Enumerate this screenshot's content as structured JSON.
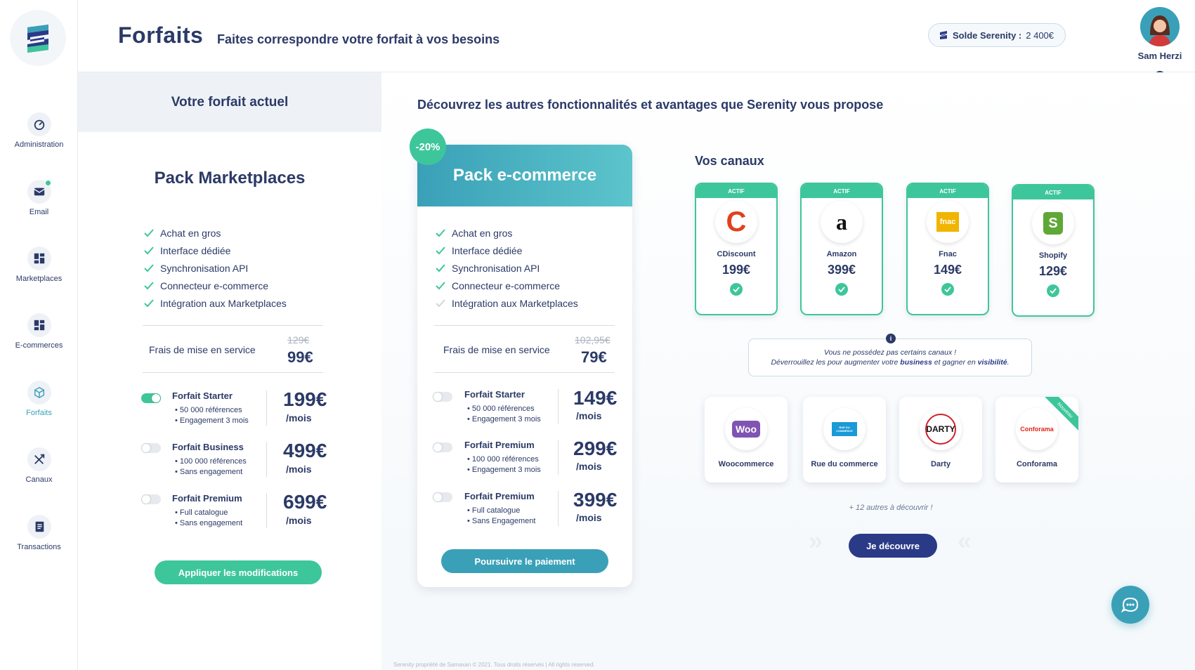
{
  "header": {
    "title": "Forfaits",
    "subtitle": "Faites correspondre votre forfait à vos besoins",
    "balance_label": "Solde Serenity :",
    "balance_value": "2 400€",
    "user_name": "Sam Herzi"
  },
  "sidebar": {
    "items": [
      {
        "label": "Administration",
        "icon": "gauge-icon"
      },
      {
        "label": "Email",
        "icon": "mail-icon"
      },
      {
        "label": "Marketplaces",
        "icon": "dashboard-icon"
      },
      {
        "label": "E-commerces",
        "icon": "dashboard-icon"
      },
      {
        "label": "Forfaits",
        "icon": "cube-icon",
        "active": true
      },
      {
        "label": "Canaux",
        "icon": "shuffle-icon"
      },
      {
        "label": "Transactions",
        "icon": "receipt-icon"
      }
    ]
  },
  "current": {
    "heading": "Votre forfait actuel",
    "pack_name": "Pack Marketplaces",
    "features": [
      "Achat en gros",
      "Interface dédiée",
      "Synchronisation API",
      "Connecteur e-commerce",
      "Intégration aux Marketplaces"
    ],
    "fee_label": "Frais de mise en service",
    "fee_old": "129€",
    "fee_new": "99€",
    "plans": [
      {
        "name": "Forfait Starter",
        "d1": "50 000 références",
        "d2": "Engagement 3 mois",
        "price": "199€",
        "unit": "/mois",
        "on": true
      },
      {
        "name": "Forfait Business",
        "d1": "100 000 références",
        "d2": "Sans engagement",
        "price": "499€",
        "unit": "/mois",
        "on": false
      },
      {
        "name": "Forfait Premium",
        "d1": "Full catalogue",
        "d2": "Sans engagement",
        "price": "699€",
        "unit": "/mois",
        "on": false
      }
    ],
    "apply_label": "Appliquer les modifications"
  },
  "discover": {
    "heading": "Découvrez les autres fonctionnalités et avantages que Serenity vous propose",
    "discount": "-20%",
    "pack_name": "Pack e-commerce",
    "features": [
      "Achat en gros",
      "Interface dédiée",
      "Synchronisation API",
      "Connecteur e-commerce",
      "Intégration aux Marketplaces"
    ],
    "features_included": [
      true,
      true,
      true,
      true,
      false
    ],
    "fee_label": "Frais de mise en service",
    "fee_old": "102,95€",
    "fee_new": "79€",
    "plans": [
      {
        "name": "Forfait Starter",
        "d1": "50 000 références",
        "d2": "Engagement 3 mois",
        "price": "149€",
        "unit": "/mois"
      },
      {
        "name": "Forfait Premium",
        "d1": "100 000 références",
        "d2": "Engagement 3 mois",
        "price": "299€",
        "unit": "/mois"
      },
      {
        "name": "Forfait Premium",
        "d1": "Full catalogue",
        "d2": "Sans Engagement",
        "price": "399€",
        "unit": "/mois"
      }
    ],
    "pay_label": "Poursuivre le paiement"
  },
  "channels": {
    "heading": "Vos canaux",
    "active_badge": "ACTIF",
    "items": [
      {
        "name": "CDiscount",
        "price": "199€",
        "logo": "C",
        "color": "#e2401d"
      },
      {
        "name": "Amazon",
        "price": "399€",
        "logo": "a",
        "color": "#111111"
      },
      {
        "name": "Fnac",
        "price": "149€",
        "logo": "fnac",
        "color": "#f1b400"
      },
      {
        "name": "Shopify",
        "price": "129€",
        "logo": "S",
        "color": "#5fa737"
      }
    ],
    "info_line1": "Vous ne possédez pas certains canaux !",
    "info_line2_a": "Déverrouillez les pour augmenter votre ",
    "info_bold1": "business",
    "info_line2_b": " et gagner en ",
    "info_bold2": "visibilité",
    "info_line2_c": ".",
    "others": [
      {
        "name": "Woocommerce",
        "logo": "Woo",
        "color": "#7f54b3"
      },
      {
        "name": "Rue du commerce",
        "logo": "RUE DU COMMERCE",
        "color": "#1a9ad6"
      },
      {
        "name": "Darty",
        "logo": "DARTY",
        "color": "#d3202d"
      },
      {
        "name": "Conforama",
        "logo": "Conforama",
        "color": "#e2231a",
        "ribbon": "Nouveau"
      }
    ],
    "more": "+ 12 autres à découvrir !",
    "discover_label": "Je découvre"
  },
  "footer": "Serenity propriété de Samaxan © 2021. Tous droits réservés  |  All rights reserved."
}
